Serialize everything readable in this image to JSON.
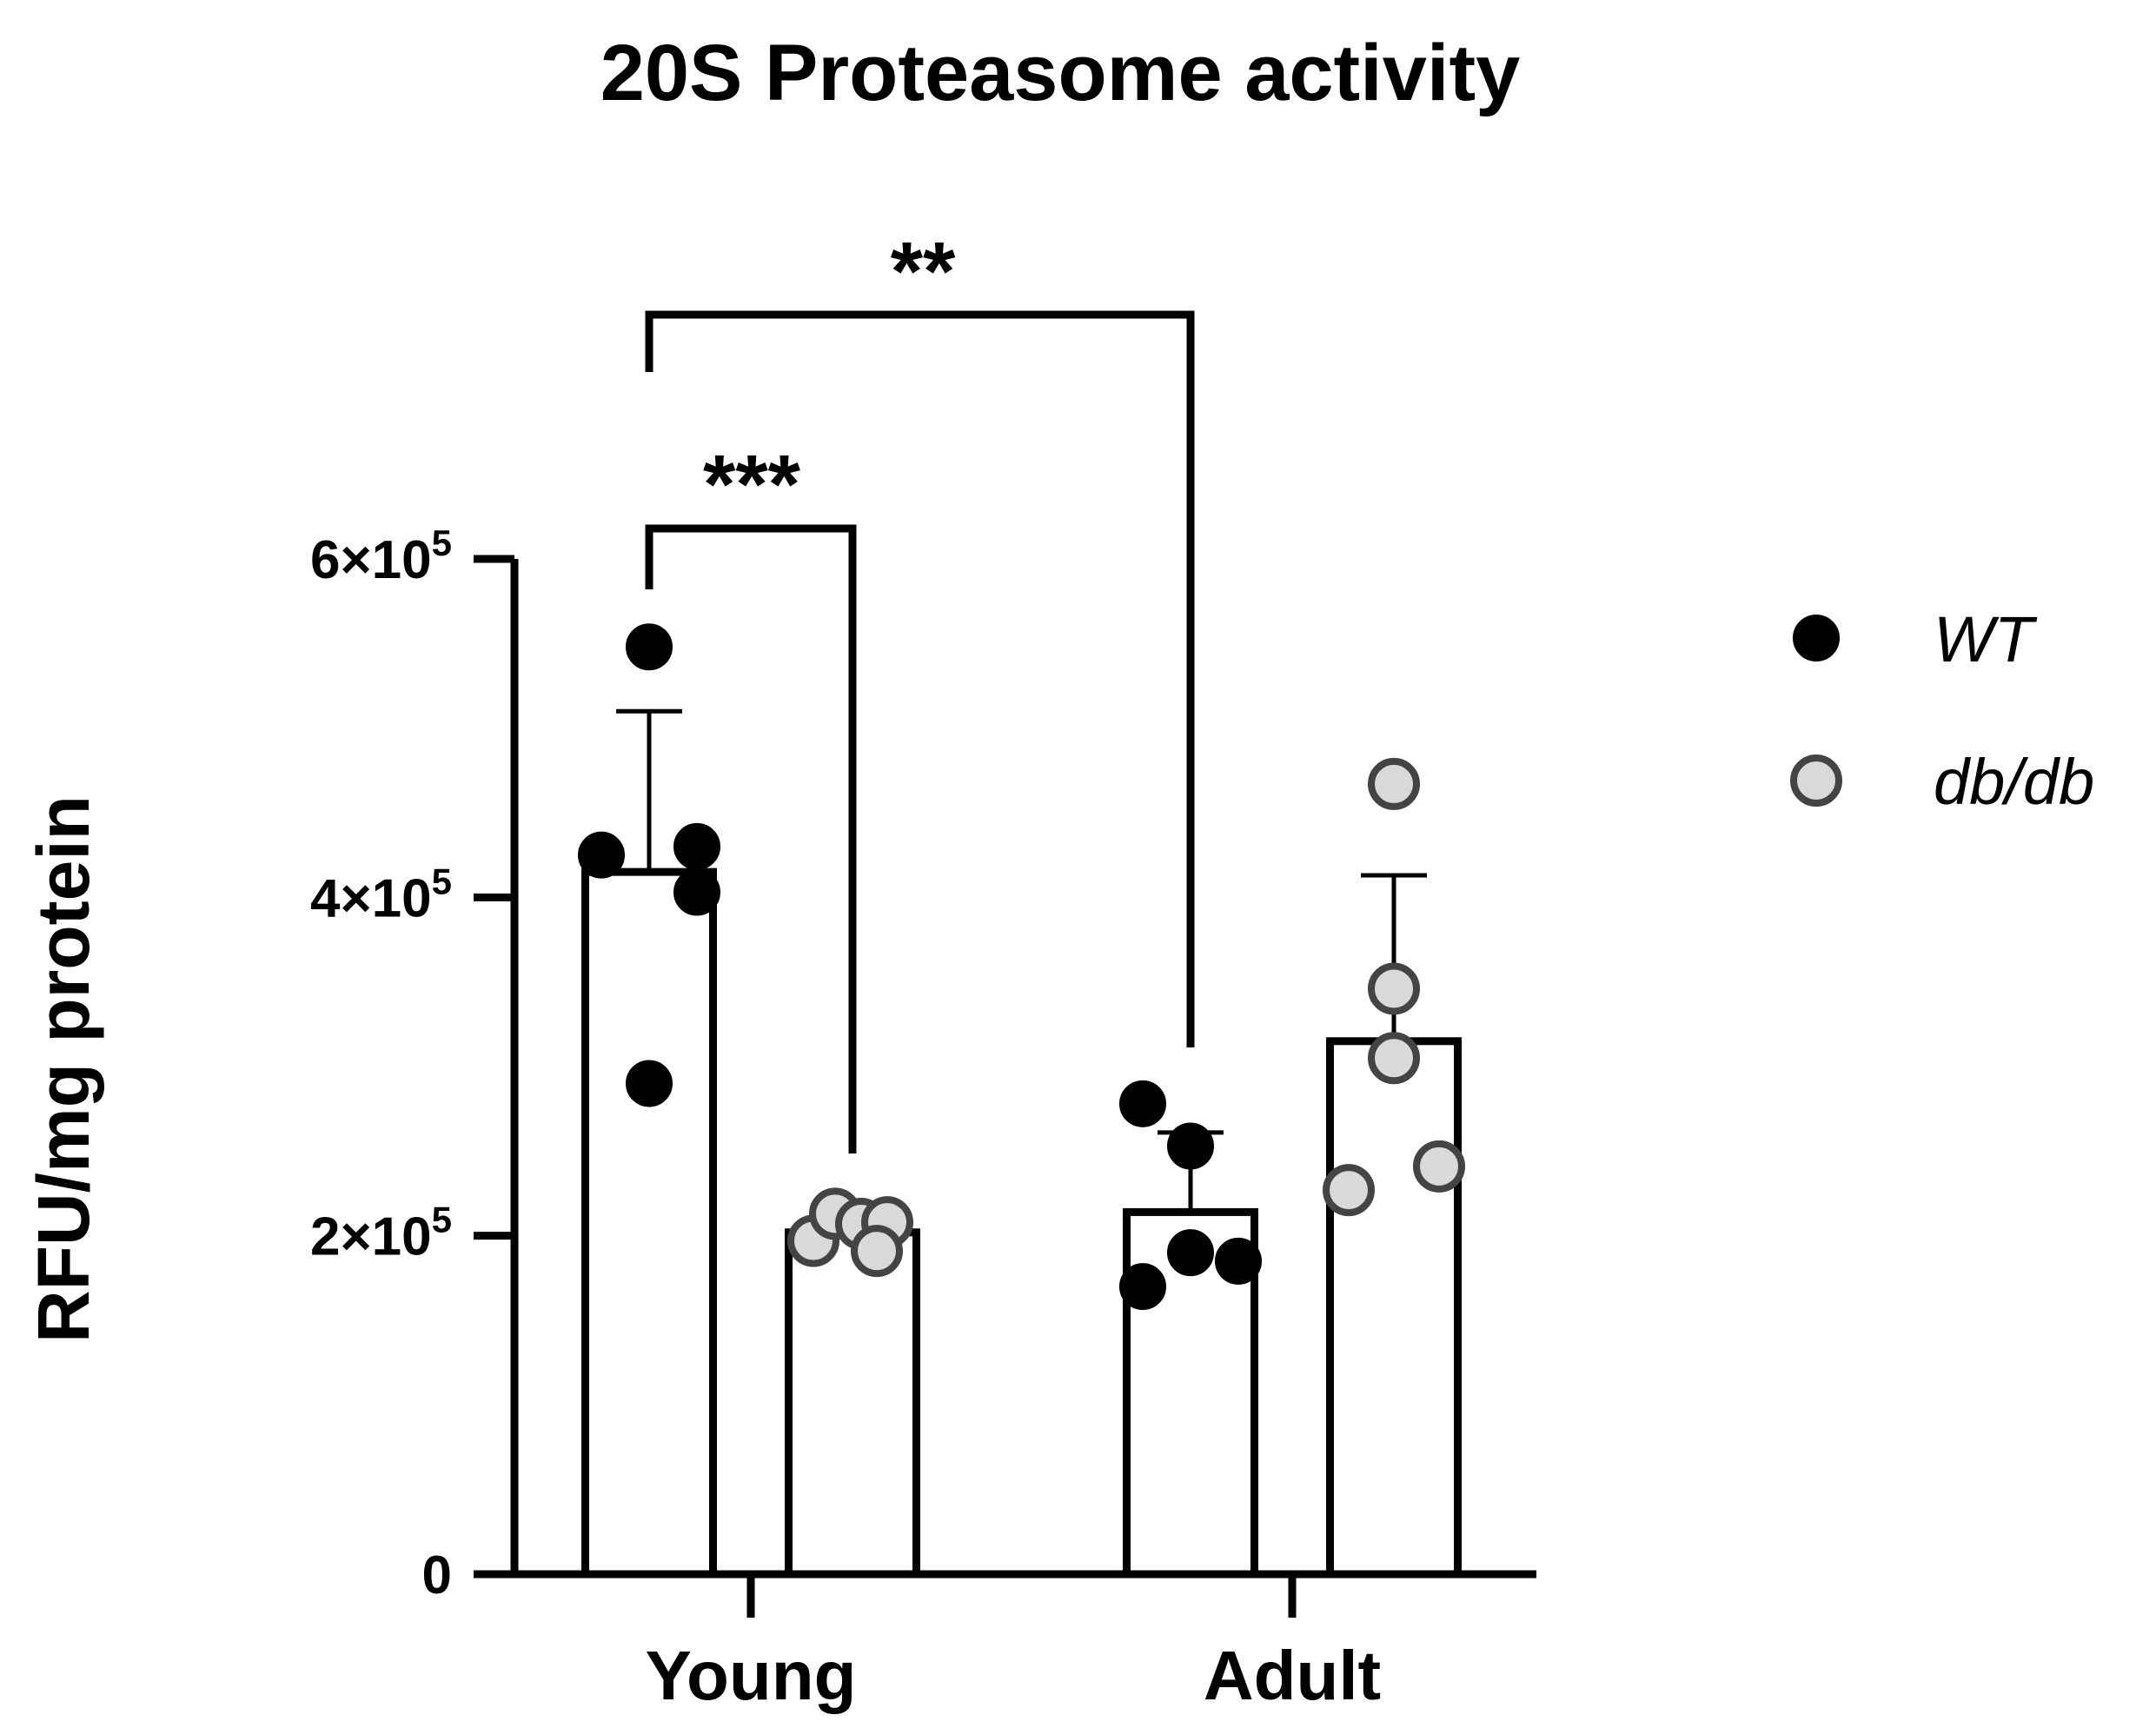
{
  "chart_data": {
    "type": "bar",
    "title": "20S Proteasome activity",
    "ylabel": "RFU/mg protein",
    "xlabel": "",
    "ylim": [
      0,
      600000
    ],
    "yticks": [
      {
        "value": 0,
        "base": "0",
        "exp": ""
      },
      {
        "value": 200000,
        "base": "2×10",
        "exp": "5"
      },
      {
        "value": 400000,
        "base": "4×10",
        "exp": "5"
      },
      {
        "value": 600000,
        "base": "6×10",
        "exp": "5"
      }
    ],
    "categories": [
      "Young",
      "Adult"
    ],
    "series": [
      {
        "name": "WT",
        "color": "#000000",
        "values": [
          415000,
          214000
        ],
        "sd": [
          95000,
          47000
        ],
        "points": [
          [
            548000,
            425000,
            430000,
            403000,
            290000
          ],
          [
            278000,
            253000,
            190000,
            185000,
            170000
          ]
        ]
      },
      {
        "name": "db/db",
        "color": "#d9d9d9",
        "values": [
          202000,
          315000
        ],
        "sd": [
          0,
          98000
        ],
        "points": [
          [
            197000,
            213000,
            207000,
            208000,
            191000
          ],
          [
            467000,
            346000,
            305000,
            227000,
            241000
          ]
        ]
      }
    ],
    "annotations": [
      {
        "text": "**",
        "from": "Young WT",
        "to": "Adult WT"
      },
      {
        "text": "***",
        "from": "Young WT",
        "to": "Young db/db"
      }
    ],
    "legend_position": "right",
    "grid": false
  }
}
